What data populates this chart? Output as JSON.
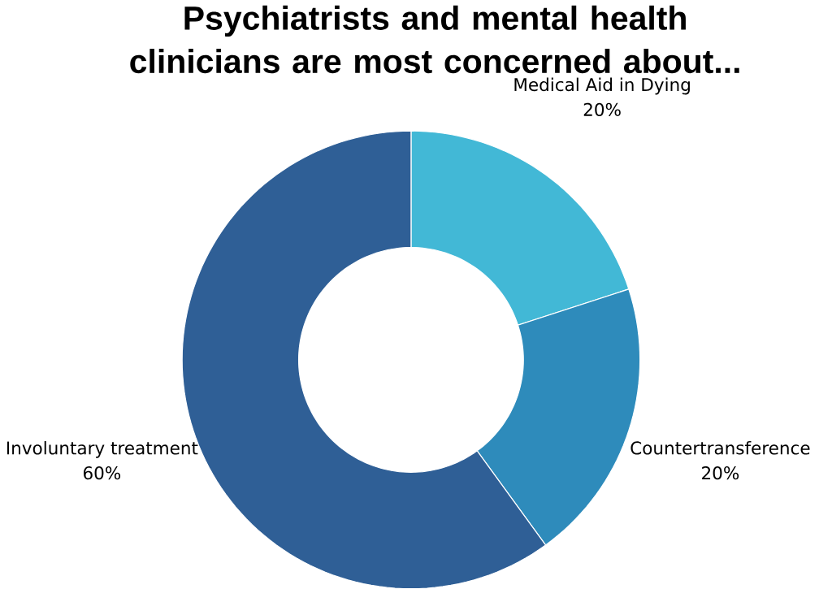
{
  "chart_data": {
    "type": "donut",
    "title": "Psychiatrists and mental health clinicians are most concerned about...",
    "categories": [
      "Medical Aid in Dying",
      "Countertransference",
      "Involuntary treatment"
    ],
    "values": [
      20,
      20,
      60
    ],
    "value_labels": [
      "20%",
      "20%",
      "60%"
    ],
    "colors": [
      "#42b8d6",
      "#2e8bbb",
      "#2f5f96"
    ]
  }
}
